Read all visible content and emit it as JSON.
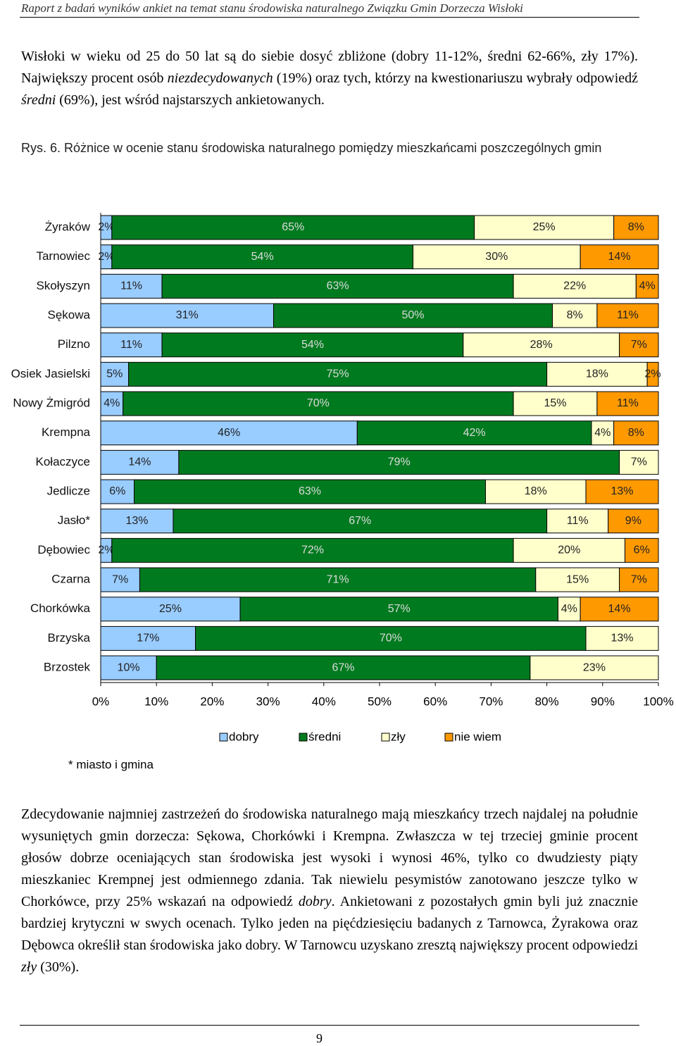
{
  "header": {
    "title": "Raport z badań wyników ankiet na temat stanu środowiska naturalnego Związku Gmin Dorzecza Wisłoki"
  },
  "paragraphs": [
    [
      {
        "text": "Wisłoki w wieku od 25 do 50 lat są do siebie dosyć zbliżone (dobry 11-12%, średni 62-66%, zły 17%). Największy procent osób ",
        "italic": false
      },
      {
        "text": "niezdecydowanych",
        "italic": true
      },
      {
        "text": " (19%) oraz tych, którzy na kwestionariuszu wybrały odpowiedź ",
        "italic": false
      },
      {
        "text": "średni",
        "italic": true
      },
      {
        "text": " (69%), jest wśród najstarszych ankietowanych.",
        "italic": false
      }
    ],
    [
      {
        "text": "Zdecydowanie najmniej zastrzeżeń do środowiska naturalnego mają mieszkańcy trzech najdalej na południe wysuniętych gmin dorzecza: Sękowa, Chorkówki i Krempna. Zwłaszcza w tej trzeciej gminie procent głosów dobrze oceniających stan środowiska jest wysoki i wynosi 46%, tylko co dwudziesty piąty mieszkaniec Krempnej jest odmiennego zdania. Tak niewielu pesymistów zanotowano jeszcze tylko w Chorkówce, przy 25% wskazań na odpowiedź ",
        "italic": false
      },
      {
        "text": "dobry",
        "italic": true
      },
      {
        "text": ". Ankietowani z pozostałych gmin byli już znacznie bardziej krytyczni w swych ocenach. Tylko jeden na pięćdziesięciu badanych z Tarnowca, Żyrakowa oraz Dębowca określił stan środowiska jako dobry. W Tarnowcu uzyskano zresztą największy procent odpowiedzi ",
        "italic": false
      },
      {
        "text": "zły",
        "italic": true
      },
      {
        "text": " (30%).",
        "italic": false
      }
    ]
  ],
  "caption": "Rys. 6. Różnice w ocenie stanu środowiska naturalnego pomiędzy mieszkańcami poszczególnych gmin",
  "note": "* miasto i gmina",
  "page_number": "9",
  "chart_data": {
    "type": "stacked_barh",
    "categories": [
      "Żyraków",
      "Tarnowiec",
      "Skołyszyn",
      "Sękowa",
      "Pilzno",
      "Osiek Jasielski",
      "Nowy Żmigród",
      "Krempna",
      "Kołaczyce",
      "Jedlicze",
      "Jasło*",
      "Dębowiec",
      "Czarna",
      "Chorkówka",
      "Brzyska",
      "Brzostek"
    ],
    "series": [
      {
        "name": "dobry",
        "color": "#99ccff",
        "values": [
          2,
          2,
          11,
          31,
          11,
          5,
          4,
          46,
          14,
          6,
          13,
          2,
          7,
          25,
          17,
          10
        ],
        "value_labels": [
          "2%",
          "2%",
          "11%",
          "31%",
          "11%",
          "5%",
          "4%",
          "46%",
          "14%",
          "6%",
          "13%",
          "2%",
          "7%",
          "25%",
          "17%",
          "10%"
        ]
      },
      {
        "name": "średni",
        "color": "#007a1f",
        "values": [
          65,
          54,
          63,
          50,
          54,
          75,
          70,
          42,
          79,
          63,
          67,
          72,
          71,
          57,
          70,
          67
        ],
        "value_labels": [
          "65%",
          "54%",
          "63%",
          "50%",
          "54%",
          "75%",
          "70%",
          "42%",
          "79%",
          "63%",
          "67%",
          "72%",
          "71%",
          "57%",
          "70%",
          "67%"
        ]
      },
      {
        "name": "zły",
        "color": "#ffffcc",
        "values": [
          25,
          30,
          22,
          8,
          28,
          18,
          15,
          4,
          7,
          18,
          11,
          20,
          15,
          4,
          13,
          23
        ],
        "value_labels": [
          "25%",
          "30%",
          "22%",
          "8%",
          "28%",
          "18%",
          "15%",
          "4%",
          "7%",
          "18%",
          "11%",
          "20%",
          "15%",
          "4%",
          "13%",
          "23%"
        ]
      },
      {
        "name": "nie wiem",
        "color": "#ff9900",
        "values": [
          8,
          14,
          4,
          11,
          7,
          2,
          11,
          8,
          null,
          13,
          9,
          6,
          7,
          14,
          null,
          null
        ],
        "value_labels": [
          "8%",
          "14%",
          "4%",
          "11%",
          "7%",
          "2%",
          "11%",
          "8%",
          null,
          "13%",
          "9%",
          "6%",
          "7%",
          "14%",
          null,
          null
        ]
      }
    ],
    "xlim": [
      0,
      100
    ],
    "xticks": [
      {
        "value": 0,
        "label": "0%"
      },
      {
        "value": 10,
        "label": "10%"
      },
      {
        "value": 20,
        "label": "20%"
      },
      {
        "value": 30,
        "label": "30%"
      },
      {
        "value": 40,
        "label": "40%"
      },
      {
        "value": 50,
        "label": "50%"
      },
      {
        "value": 60,
        "label": "60%"
      },
      {
        "value": 70,
        "label": "70%"
      },
      {
        "value": 80,
        "label": "80%"
      },
      {
        "value": 90,
        "label": "90%"
      },
      {
        "value": 100,
        "label": "100%"
      }
    ],
    "legend": "bottom"
  }
}
